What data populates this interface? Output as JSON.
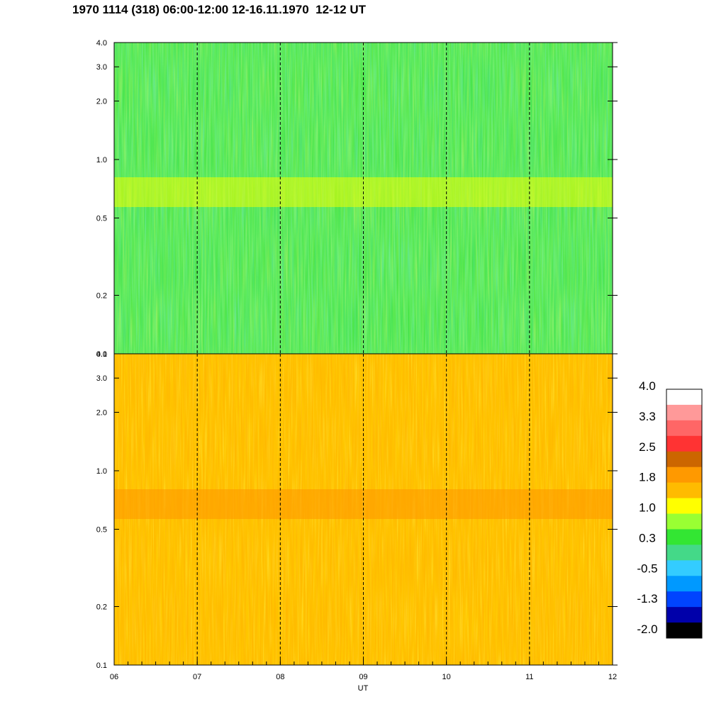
{
  "title": "1970 1114 (318) 06:00-12:00 12-16.11.1970  12-12 UT",
  "chart_data": [
    {
      "type": "heatmap",
      "panel": "upper",
      "x_range": [
        6,
        12
      ],
      "y_range": [
        0.1,
        4.0
      ],
      "y_scale": "log",
      "y_ticks": [
        "0.1",
        "0.2",
        "0.5",
        "1.0",
        "2.0",
        "3.0",
        "4.0"
      ],
      "x_ticks": [
        "06",
        "07",
        "08",
        "09",
        "10",
        "11",
        "12"
      ],
      "dominant_level": 0.3,
      "band": {
        "y_from": 0.55,
        "y_to": 0.8,
        "level": 1.0
      },
      "vertical_markers": [
        "07",
        "08",
        "09",
        "10",
        "11"
      ]
    },
    {
      "type": "heatmap",
      "panel": "lower",
      "x_range": [
        6,
        12
      ],
      "y_range": [
        0.1,
        4.0
      ],
      "y_scale": "log",
      "y_ticks": [
        "0.1",
        "0.2",
        "0.5",
        "1.0",
        "2.0",
        "3.0",
        "4.0"
      ],
      "x_ticks": [
        "06",
        "07",
        "08",
        "09",
        "10",
        "11",
        "12"
      ],
      "xlabel": "UT",
      "dominant_level": 1.8,
      "band": {
        "y_from": 0.55,
        "y_to": 0.8,
        "level": 2.2
      },
      "vertical_markers": [
        "07",
        "08",
        "09",
        "10",
        "11"
      ]
    }
  ],
  "colorbar": {
    "labels": [
      "4.0",
      "3.3",
      "2.5",
      "1.8",
      "1.0",
      "0.3",
      "-0.5",
      "-1.3",
      "-2.0"
    ],
    "colors": [
      "#ffffff",
      "#ff9999",
      "#ff6666",
      "#ff3333",
      "#cc6600",
      "#ff9900",
      "#ffbb00",
      "#ffff00",
      "#99ff33",
      "#33e633",
      "#44d988",
      "#33ccff",
      "#0099ff",
      "#0044ff",
      "#0000aa",
      "#000000"
    ]
  }
}
